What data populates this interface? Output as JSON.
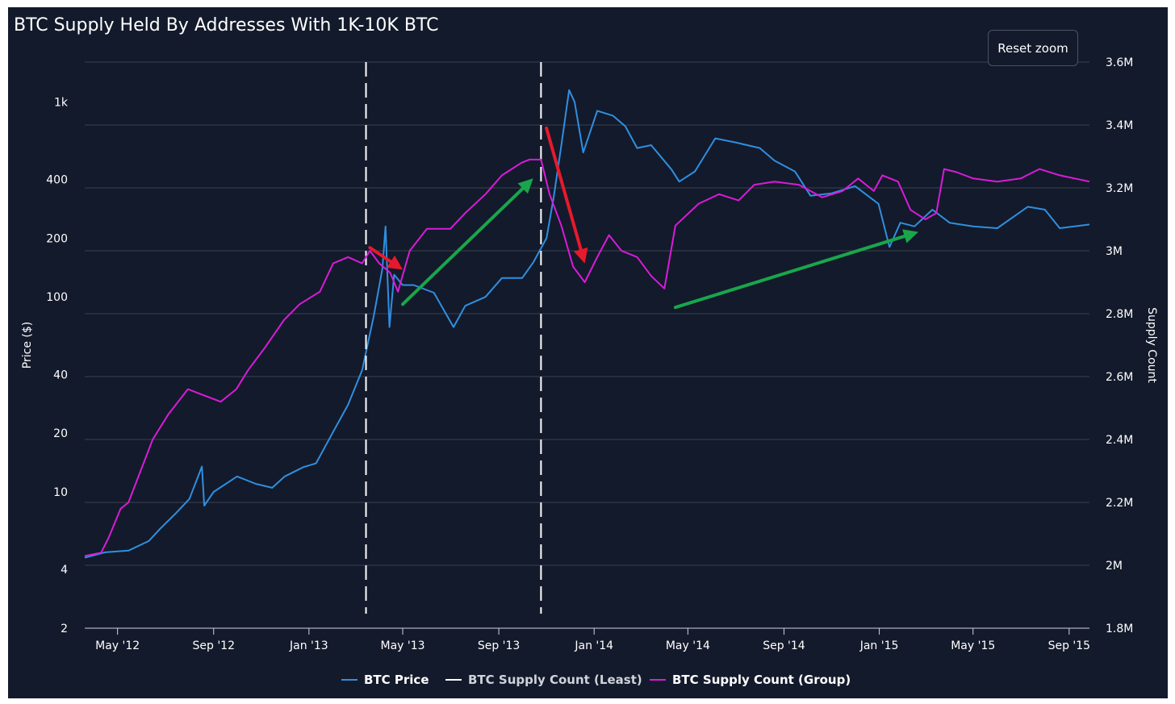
{
  "reset_zoom_label": "Reset zoom",
  "chart_data": {
    "type": "line",
    "title": "BTC Supply Held By Addresses With 1K-10K BTC",
    "y_left": {
      "label": "Price ($)",
      "scale": "log",
      "range": [
        2,
        1600
      ],
      "ticks": [
        2,
        4,
        10,
        20,
        40,
        100,
        200,
        400,
        1000
      ],
      "tick_labels": [
        "2",
        "4",
        "10",
        "20",
        "40",
        "100",
        "200",
        "400",
        "1k"
      ]
    },
    "y_right": {
      "label": "Supply Count",
      "range": [
        1800000,
        3600000
      ],
      "ticks": [
        1800000,
        2000000,
        2200000,
        2400000,
        2600000,
        2800000,
        3000000,
        3200000,
        3400000,
        3600000
      ],
      "tick_labels": [
        "1.8M",
        "2M",
        "2.2M",
        "2.4M",
        "2.6M",
        "2.8M",
        "3M",
        "3.2M",
        "3.4M",
        "3.6M"
      ]
    },
    "x_axis": {
      "range": [
        "2012-03-20",
        "2015-09-27"
      ],
      "ticks": [
        "2012-05-01",
        "2012-09-01",
        "2013-01-01",
        "2013-05-01",
        "2013-09-01",
        "2014-01-01",
        "2014-05-01",
        "2014-09-01",
        "2015-01-01",
        "2015-05-01",
        "2015-09-01"
      ],
      "tick_labels": [
        "May '12",
        "Sep '12",
        "Jan '13",
        "May '13",
        "Sep '13",
        "Jan '14",
        "May '14",
        "Sep '14",
        "Jan '15",
        "May '15",
        "Sep '15"
      ]
    },
    "grid": true,
    "legend_position": "bottom-center",
    "series": [
      {
        "name": "BTC Price",
        "axis": "left",
        "color": "#2f8fe0",
        "points": [
          [
            "2012-03-20",
            4.6
          ],
          [
            "2012-04-15",
            4.9
          ],
          [
            "2012-05-15",
            5.0
          ],
          [
            "2012-06-10",
            5.6
          ],
          [
            "2012-06-25",
            6.5
          ],
          [
            "2012-07-15",
            7.8
          ],
          [
            "2012-08-01",
            9.2
          ],
          [
            "2012-08-17",
            13.5
          ],
          [
            "2012-08-20",
            8.5
          ],
          [
            "2012-09-01",
            10.0
          ],
          [
            "2012-10-01",
            12.0
          ],
          [
            "2012-10-25",
            11.0
          ],
          [
            "2012-11-15",
            10.5
          ],
          [
            "2012-12-01",
            12.0
          ],
          [
            "2012-12-25",
            13.4
          ],
          [
            "2013-01-10",
            14.0
          ],
          [
            "2013-01-31",
            20.0
          ],
          [
            "2013-02-20",
            28.0
          ],
          [
            "2013-03-10",
            42.0
          ],
          [
            "2013-03-25",
            80.0
          ],
          [
            "2013-04-05",
            140.0
          ],
          [
            "2013-04-09",
            230.0
          ],
          [
            "2013-04-14",
            70.0
          ],
          [
            "2013-04-20",
            130.0
          ],
          [
            "2013-05-01",
            115.0
          ],
          [
            "2013-05-15",
            115.0
          ],
          [
            "2013-06-10",
            105.0
          ],
          [
            "2013-07-05",
            70.0
          ],
          [
            "2013-07-20",
            90.0
          ],
          [
            "2013-08-15",
            100.0
          ],
          [
            "2013-09-05",
            125.0
          ],
          [
            "2013-10-01",
            125.0
          ],
          [
            "2013-10-15",
            150.0
          ],
          [
            "2013-11-01",
            200.0
          ],
          [
            "2013-11-10",
            320.0
          ],
          [
            "2013-11-20",
            600.0
          ],
          [
            "2013-11-30",
            1150.0
          ],
          [
            "2013-12-07",
            1000.0
          ],
          [
            "2013-12-18",
            550.0
          ],
          [
            "2014-01-05",
            900.0
          ],
          [
            "2014-01-25",
            850.0
          ],
          [
            "2014-02-10",
            750.0
          ],
          [
            "2014-02-25",
            580.0
          ],
          [
            "2014-03-15",
            600.0
          ],
          [
            "2014-04-10",
            450.0
          ],
          [
            "2014-04-20",
            390.0
          ],
          [
            "2014-05-10",
            440.0
          ],
          [
            "2014-06-05",
            650.0
          ],
          [
            "2014-07-01",
            620.0
          ],
          [
            "2014-08-01",
            580.0
          ],
          [
            "2014-08-20",
            500.0
          ],
          [
            "2014-09-15",
            440.0
          ],
          [
            "2014-10-05",
            330.0
          ],
          [
            "2014-11-01",
            340.0
          ],
          [
            "2014-12-01",
            370.0
          ],
          [
            "2014-12-31",
            300.0
          ],
          [
            "2015-01-14",
            180.0
          ],
          [
            "2015-01-28",
            240.0
          ],
          [
            "2015-02-15",
            230.0
          ],
          [
            "2015-03-10",
            280.0
          ],
          [
            "2015-04-01",
            240.0
          ],
          [
            "2015-05-01",
            230.0
          ],
          [
            "2015-06-01",
            225.0
          ],
          [
            "2015-07-10",
            290.0
          ],
          [
            "2015-08-01",
            280.0
          ],
          [
            "2015-08-20",
            225.0
          ],
          [
            "2015-09-27",
            235.0
          ]
        ]
      },
      {
        "name": "BTC Supply Count (Least)",
        "axis": "right",
        "color": "#ffffff",
        "dashed": true,
        "vertical_markers": true,
        "points": [
          [
            "2013-03-15",
            null
          ],
          [
            "2013-10-25",
            null
          ]
        ]
      },
      {
        "name": "BTC Supply Count (Group)",
        "axis": "right",
        "color": "#d91bd9",
        "points": [
          [
            "2012-03-20",
            2030000
          ],
          [
            "2012-04-10",
            2040000
          ],
          [
            "2012-04-20",
            2090000
          ],
          [
            "2012-05-05",
            2180000
          ],
          [
            "2012-05-15",
            2200000
          ],
          [
            "2012-06-01",
            2310000
          ],
          [
            "2012-06-15",
            2400000
          ],
          [
            "2012-07-05",
            2480000
          ],
          [
            "2012-07-30",
            2560000
          ],
          [
            "2012-08-20",
            2540000
          ],
          [
            "2012-09-10",
            2520000
          ],
          [
            "2012-09-30",
            2560000
          ],
          [
            "2012-10-15",
            2620000
          ],
          [
            "2012-11-05",
            2690000
          ],
          [
            "2012-11-30",
            2780000
          ],
          [
            "2012-12-20",
            2830000
          ],
          [
            "2013-01-15",
            2870000
          ],
          [
            "2013-02-01",
            2960000
          ],
          [
            "2013-02-20",
            2980000
          ],
          [
            "2013-03-10",
            2960000
          ],
          [
            "2013-03-20",
            3000000
          ],
          [
            "2013-04-01",
            2960000
          ],
          [
            "2013-04-15",
            2930000
          ],
          [
            "2013-04-25",
            2870000
          ],
          [
            "2013-05-10",
            3000000
          ],
          [
            "2013-06-01",
            3070000
          ],
          [
            "2013-07-01",
            3070000
          ],
          [
            "2013-07-20",
            3120000
          ],
          [
            "2013-08-15",
            3180000
          ],
          [
            "2013-09-05",
            3240000
          ],
          [
            "2013-09-30",
            3280000
          ],
          [
            "2013-10-10",
            3290000
          ],
          [
            "2013-10-25",
            3290000
          ],
          [
            "2013-11-05",
            3180000
          ],
          [
            "2013-11-20",
            3080000
          ],
          [
            "2013-12-05",
            2950000
          ],
          [
            "2013-12-20",
            2900000
          ],
          [
            "2014-01-05",
            2980000
          ],
          [
            "2014-01-20",
            3050000
          ],
          [
            "2014-02-05",
            3000000
          ],
          [
            "2014-02-25",
            2980000
          ],
          [
            "2014-03-15",
            2920000
          ],
          [
            "2014-04-01",
            2880000
          ],
          [
            "2014-04-08",
            2980000
          ],
          [
            "2014-04-15",
            3080000
          ],
          [
            "2014-05-15",
            3150000
          ],
          [
            "2014-06-10",
            3180000
          ],
          [
            "2014-07-05",
            3160000
          ],
          [
            "2014-07-25",
            3210000
          ],
          [
            "2014-08-20",
            3220000
          ],
          [
            "2014-09-20",
            3210000
          ],
          [
            "2014-10-20",
            3170000
          ],
          [
            "2014-11-15",
            3190000
          ],
          [
            "2014-12-05",
            3230000
          ],
          [
            "2014-12-25",
            3190000
          ],
          [
            "2015-01-05",
            3240000
          ],
          [
            "2015-01-25",
            3220000
          ],
          [
            "2015-02-10",
            3130000
          ],
          [
            "2015-03-01",
            3100000
          ],
          [
            "2015-03-15",
            3120000
          ],
          [
            "2015-03-25",
            3260000
          ],
          [
            "2015-04-10",
            3250000
          ],
          [
            "2015-05-01",
            3230000
          ],
          [
            "2015-06-01",
            3220000
          ],
          [
            "2015-07-01",
            3230000
          ],
          [
            "2015-07-25",
            3260000
          ],
          [
            "2015-08-20",
            3240000
          ],
          [
            "2015-09-27",
            3220000
          ]
        ]
      }
    ],
    "annotations": [
      {
        "type": "arrow",
        "color": "#e8192c",
        "from": [
          "2013-03-20",
          3010000
        ],
        "to": [
          "2013-05-01",
          2940000
        ]
      },
      {
        "type": "arrow",
        "color": "#e8192c",
        "from": [
          "2013-11-01",
          3390000
        ],
        "to": [
          "2013-12-20",
          2960000
        ]
      },
      {
        "type": "arrow",
        "color": "#19a64b",
        "from": [
          "2013-05-01",
          2830000
        ],
        "to": [
          "2013-10-15",
          3230000
        ]
      },
      {
        "type": "arrow",
        "color": "#19a64b",
        "from": [
          "2014-04-15",
          2820000
        ],
        "to": [
          "2015-02-20",
          3060000
        ]
      }
    ]
  }
}
